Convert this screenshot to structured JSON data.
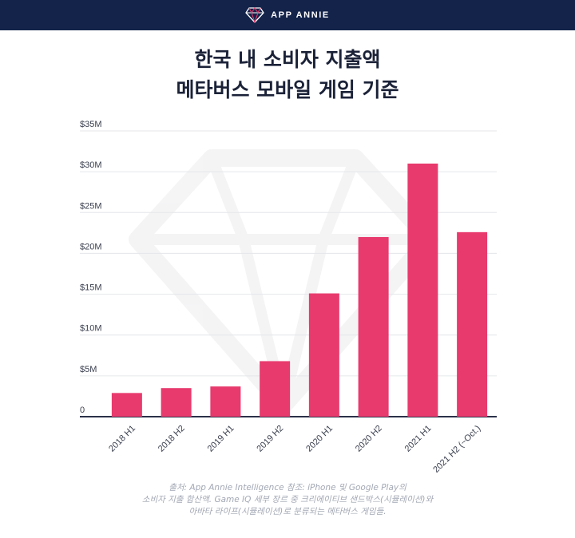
{
  "header": {
    "brand": "APP ANNIE",
    "logo_icon": "diamond-logo-icon",
    "background": "#13234a"
  },
  "title_lines": [
    "한국 내 소비자 지출액",
    "메타버스 모바일 게임 기준"
  ],
  "chart_data": {
    "type": "bar",
    "categories": [
      "2018 H1",
      "2018 H2",
      "2019 H1",
      "2019 H2",
      "2020 H1",
      "2020 H2",
      "2021 H1",
      "2021 H2 (~Oct.)"
    ],
    "values": [
      2.9,
      3.5,
      3.7,
      6.8,
      15.1,
      22.0,
      31.0,
      22.6
    ],
    "unit": "USD millions",
    "ylim": [
      0,
      35
    ],
    "y_ticks": [
      {
        "value": 0,
        "label": "0"
      },
      {
        "value": 5,
        "label": "$5M"
      },
      {
        "value": 10,
        "label": "$10M"
      },
      {
        "value": 15,
        "label": "$15M"
      },
      {
        "value": 20,
        "label": "$20M"
      },
      {
        "value": 25,
        "label": "$25M"
      },
      {
        "value": 30,
        "label": "$30M"
      },
      {
        "value": 35,
        "label": "$35M"
      }
    ],
    "grid": true,
    "bar_color": "#e83a6d",
    "axis_color": "#2b3148",
    "grid_color": "#e4e6ea",
    "watermark": "diamond-watermark-icon"
  },
  "footnote_lines": [
    "출처: App Annie Intelligence 참조: iPhone 및 Google Play의",
    "소비자 지출 합산액. Game IQ 세부 장르 중 크리에이티브 샌드박스(시뮬레이션)와",
    "아바타 라이프(시뮬레이션)로 분류되는 메타버스 게임들."
  ]
}
